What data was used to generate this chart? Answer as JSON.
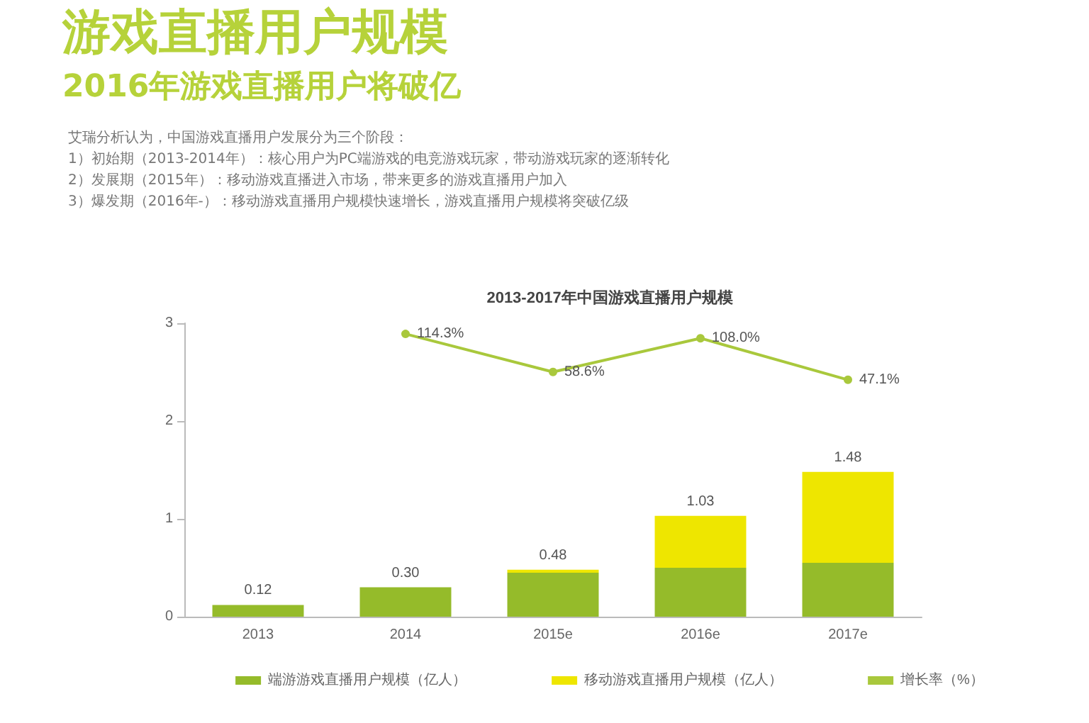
{
  "chart_data": {
    "type": "bar",
    "title": "游戏直播用户规模",
    "subtitle": "2016年游戏直播用户将破亿",
    "annotations": [
      "艾瑞分析认为，中国游戏直播用户发展分为三个阶段：",
      "1）初始期（2013-2014年）：核心用户为PC端游戏的电竞游戏玩家，带动游戏玩家的逐渐转化",
      "2）发展期（2015年）：移动游戏直播进入市场，带来更多的游戏直播用户加入",
      "3）爆发期（2016年-）：移动游戏直播用户规模快速增长，游戏直播用户规模将突破亿级",
      "2013-2017年中国游戏直播用户规模"
    ],
    "categories": [
      "2013",
      "2014",
      "2015e",
      "2016e",
      "2017e"
    ],
    "series": [
      {
        "name": "端游游戏直播用户规模（亿人）",
        "color": "#95bb2a",
        "values": [
          0.12,
          0.3,
          0.45,
          0.5,
          0.55
        ]
      },
      {
        "name": "移动游戏直播用户规模（亿人）",
        "color": "#eee600",
        "values": [
          0,
          0,
          0.03,
          0.53,
          0.93
        ]
      },
      {
        "name": "增长率（%）",
        "type": "line",
        "axis": "y2",
        "color": "#a9c83c",
        "marker": "circle",
        "values": [
          null,
          114.3,
          58.6,
          108.0,
          47.1
        ],
        "value_labels": [
          null,
          "114.3%",
          "58.6%",
          "108.0%",
          "47.1%"
        ]
      }
    ],
    "stacked": true,
    "totals": [
      "0.12",
      "0.30",
      "0.48",
      "1.03",
      "1.48"
    ],
    "ylim": [
      0,
      3
    ],
    "yticks": [
      0,
      1,
      2,
      3
    ],
    "y2lim": [
      -300,
      130
    ],
    "grid": false,
    "legend": "bottom"
  }
}
